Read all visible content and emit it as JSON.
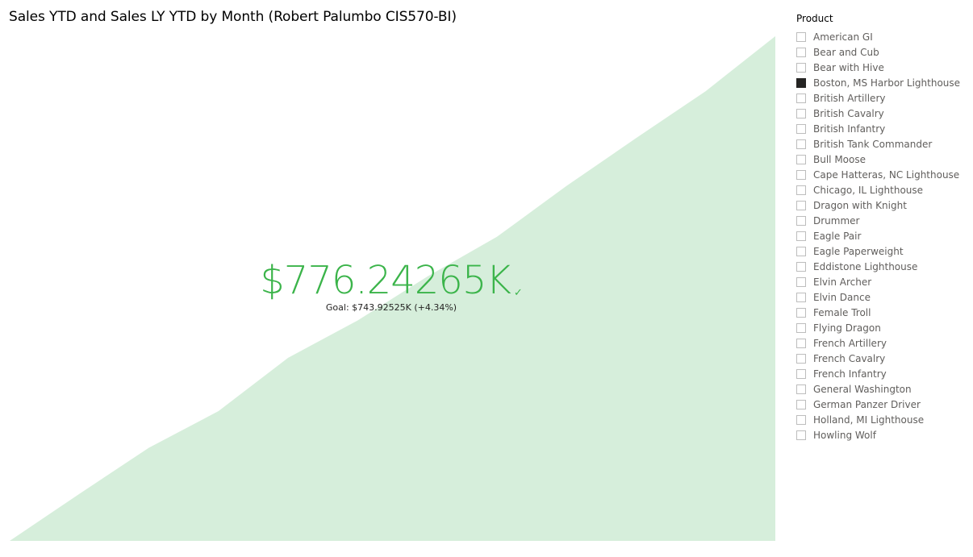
{
  "kpi": {
    "title": "Sales YTD and Sales LY YTD by Month (Robert Palumbo CIS570-BI)",
    "value": "$776.24265K",
    "goal_text": "Goal: $743.92525K (+4.34%)",
    "status_icon": "check-icon",
    "status_glyph": "✓",
    "status_color": "#3bb44a",
    "trend_fill_color": "#d6eedb"
  },
  "chart_data": {
    "type": "area",
    "title": "Sales YTD and Sales LY YTD by Month (Robert Palumbo CIS570-BI)",
    "x": [
      1,
      2,
      3,
      4,
      5,
      6,
      7,
      8,
      9,
      10,
      11,
      12
    ],
    "values": [
      0,
      59,
      117,
      163,
      230,
      277,
      332,
      382,
      446,
      506,
      565,
      634
    ],
    "ylim": [
      0,
      640
    ],
    "grid": false,
    "axes_visible": false
  },
  "slicer": {
    "header": "Product",
    "items": [
      {
        "label": "American GI",
        "checked": false
      },
      {
        "label": "Bear and Cub",
        "checked": false
      },
      {
        "label": "Bear with Hive",
        "checked": false
      },
      {
        "label": "Boston, MS Harbor Lighthouse",
        "checked": true
      },
      {
        "label": "British Artillery",
        "checked": false
      },
      {
        "label": "British Cavalry",
        "checked": false
      },
      {
        "label": "British Infantry",
        "checked": false
      },
      {
        "label": "British Tank Commander",
        "checked": false
      },
      {
        "label": "Bull Moose",
        "checked": false
      },
      {
        "label": "Cape Hatteras, NC Lighthouse",
        "checked": false
      },
      {
        "label": "Chicago, IL Lighthouse",
        "checked": false
      },
      {
        "label": "Dragon with Knight",
        "checked": false
      },
      {
        "label": "Drummer",
        "checked": false
      },
      {
        "label": "Eagle Pair",
        "checked": false
      },
      {
        "label": "Eagle Paperweight",
        "checked": false
      },
      {
        "label": "Eddistone Lighthouse",
        "checked": false
      },
      {
        "label": "Elvin Archer",
        "checked": false
      },
      {
        "label": "Elvin Dance",
        "checked": false
      },
      {
        "label": "Female Troll",
        "checked": false
      },
      {
        "label": "Flying Dragon",
        "checked": false
      },
      {
        "label": "French Artillery",
        "checked": false
      },
      {
        "label": "French Cavalry",
        "checked": false
      },
      {
        "label": "French Infantry",
        "checked": false
      },
      {
        "label": "General Washington",
        "checked": false
      },
      {
        "label": "German Panzer Driver",
        "checked": false
      },
      {
        "label": "Holland, MI Lighthouse",
        "checked": false
      },
      {
        "label": "Howling Wolf",
        "checked": false
      }
    ]
  }
}
